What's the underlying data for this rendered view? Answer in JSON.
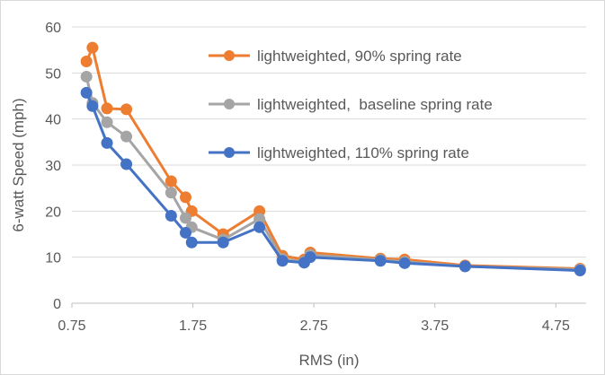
{
  "chart_data": {
    "type": "line",
    "title": "",
    "xlabel": "RMS (in)",
    "ylabel": "6-watt Speed (mph)",
    "xlim": [
      0.75,
      5.0
    ],
    "ylim": [
      0,
      60
    ],
    "xticks": [
      0.75,
      1.75,
      2.75,
      3.75,
      4.75
    ],
    "xtick_labels": [
      "0.75",
      "1.75",
      "2.75",
      "3.75",
      "4.75"
    ],
    "yticks": [
      0,
      10,
      20,
      30,
      40,
      50,
      60
    ],
    "ytick_labels": [
      "0",
      "10",
      "20",
      "30",
      "40",
      "50",
      "60"
    ],
    "grid": "horizontal",
    "legend_position": "top-right",
    "series": [
      {
        "name": "lightweighted, 90% spring rate",
        "color": "#ed7d31",
        "x": [
          0.87,
          0.92,
          1.04,
          1.2,
          1.57,
          1.69,
          1.74,
          2.0,
          2.3,
          2.49,
          2.67,
          2.72,
          3.3,
          3.5,
          4.0,
          4.95
        ],
        "y": [
          52.5,
          55.5,
          42.3,
          42.1,
          26.5,
          23.0,
          20.0,
          15.0,
          20.0,
          10.3,
          9.5,
          11.0,
          9.7,
          9.5,
          8.2,
          7.5
        ]
      },
      {
        "name": "lightweighted,  baseline spring rate",
        "color": "#a5a5a5",
        "x": [
          0.87,
          0.92,
          1.04,
          1.2,
          1.57,
          1.69,
          1.74,
          2.0,
          2.3,
          2.49,
          2.67,
          2.72,
          3.3,
          3.5,
          4.0,
          4.95
        ],
        "y": [
          49.2,
          43.5,
          39.3,
          36.2,
          24.0,
          18.5,
          16.5,
          13.8,
          18.3,
          9.6,
          9.0,
          10.5,
          9.4,
          9.0,
          8.0,
          7.3
        ]
      },
      {
        "name": "lightweighted, 110% spring rate",
        "color": "#4472c4",
        "x": [
          0.87,
          0.92,
          1.04,
          1.2,
          1.57,
          1.69,
          1.74,
          2.0,
          2.3,
          2.49,
          2.67,
          2.72,
          3.3,
          3.5,
          4.0,
          4.95
        ],
        "y": [
          45.7,
          42.8,
          34.8,
          30.2,
          19.0,
          15.3,
          13.2,
          13.2,
          16.5,
          9.2,
          8.8,
          10.0,
          9.2,
          8.7,
          8.0,
          7.1
        ]
      }
    ]
  }
}
